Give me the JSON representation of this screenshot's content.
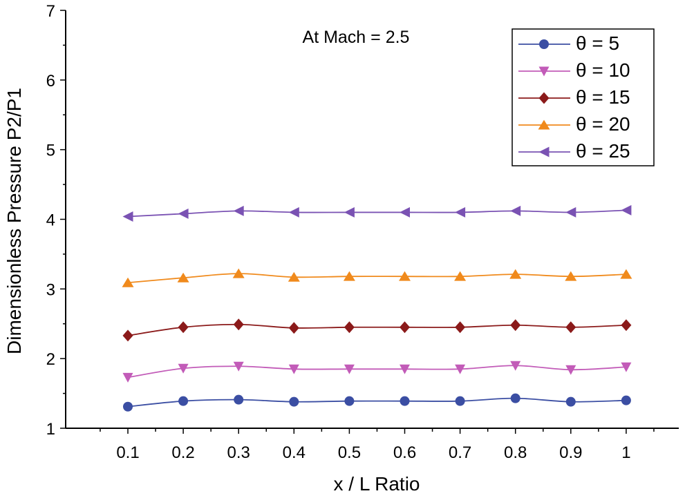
{
  "chart_data": {
    "type": "line",
    "annotation": "At Mach = 2.5",
    "xlabel": "x / L Ratio",
    "ylabel": "Dimensionless Pressure P2/P1",
    "xlim": [
      0,
      1.1
    ],
    "ylim": [
      1,
      7
    ],
    "x": [
      0.1,
      0.2,
      0.3,
      0.4,
      0.5,
      0.6,
      0.7,
      0.8,
      0.9,
      1
    ],
    "x_tick_labels": [
      "0.1",
      "0.2",
      "0.3",
      "0.4",
      "0.5",
      "0.6",
      "0.7",
      "0.8",
      "0.9",
      "1"
    ],
    "y_ticks": [
      1,
      2,
      3,
      4,
      5,
      6,
      7
    ],
    "y_tick_labels": [
      "1",
      "2",
      "3",
      "4",
      "5",
      "6",
      "7"
    ],
    "legend_position": "top-right",
    "series": [
      {
        "name": "θ = 5",
        "color": "#3b4ea3",
        "marker": "circle",
        "values": [
          1.31,
          1.39,
          1.41,
          1.38,
          1.39,
          1.39,
          1.39,
          1.43,
          1.38,
          1.4
        ]
      },
      {
        "name": "θ = 10",
        "color": "#c25bb8",
        "marker": "triangle-down",
        "values": [
          1.73,
          1.86,
          1.89,
          1.85,
          1.85,
          1.85,
          1.85,
          1.9,
          1.84,
          1.88
        ]
      },
      {
        "name": "θ = 15",
        "color": "#8b1a1a",
        "marker": "diamond",
        "values": [
          2.33,
          2.45,
          2.49,
          2.44,
          2.45,
          2.45,
          2.45,
          2.48,
          2.45,
          2.48
        ]
      },
      {
        "name": "θ = 20",
        "color": "#f08a1c",
        "marker": "triangle-up",
        "values": [
          3.09,
          3.16,
          3.22,
          3.17,
          3.18,
          3.18,
          3.18,
          3.21,
          3.18,
          3.21
        ]
      },
      {
        "name": "θ = 25",
        "color": "#7a52b3",
        "marker": "triangle-left",
        "values": [
          4.04,
          4.08,
          4.12,
          4.1,
          4.1,
          4.1,
          4.1,
          4.12,
          4.1,
          4.13
        ]
      }
    ]
  }
}
